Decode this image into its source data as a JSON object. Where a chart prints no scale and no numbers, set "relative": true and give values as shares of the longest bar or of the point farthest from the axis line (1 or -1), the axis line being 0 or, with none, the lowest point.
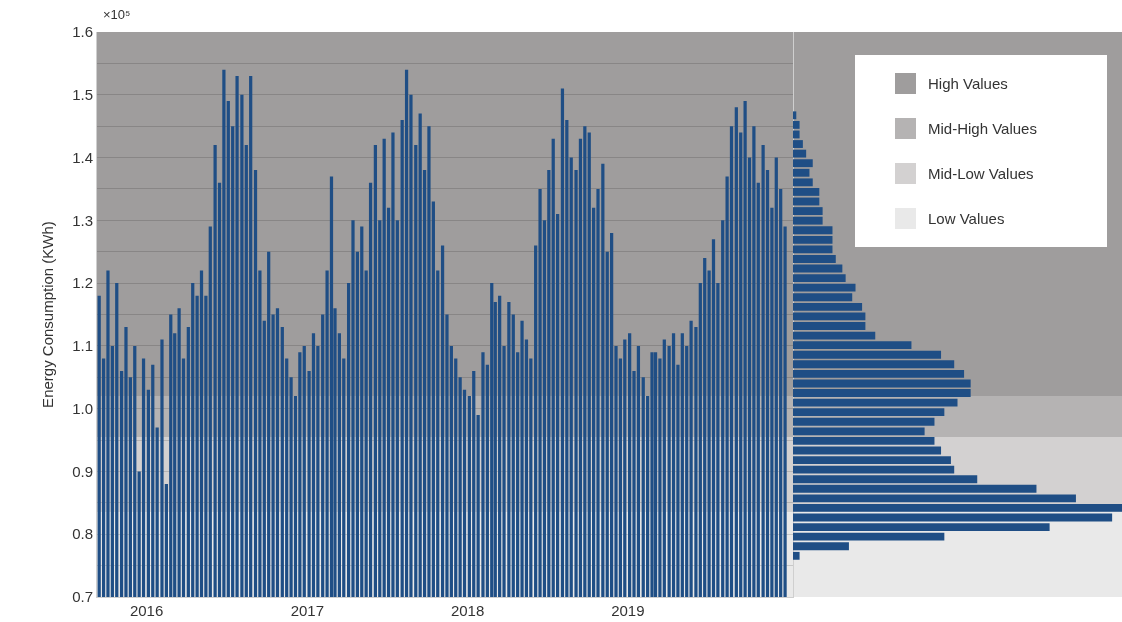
{
  "chart_data": [
    {
      "type": "bar",
      "ylabel": "Energy Consumption (KWh)",
      "annotations": [
        "×10⁵"
      ],
      "x": [
        "2015-09-15",
        "2015-09-25",
        "2015-10-05",
        "2015-10-15",
        "2015-10-25",
        "2015-11-05",
        "2015-11-15",
        "2015-11-25",
        "2015-12-05",
        "2015-12-15",
        "2015-12-25",
        "2016-01-05",
        "2016-01-15",
        "2016-01-25",
        "2016-02-05",
        "2016-02-15",
        "2016-02-25",
        "2016-03-05",
        "2016-03-15",
        "2016-03-25",
        "2016-04-05",
        "2016-04-15",
        "2016-04-25",
        "2016-05-05",
        "2016-05-15",
        "2016-05-25",
        "2016-06-05",
        "2016-06-15",
        "2016-06-25",
        "2016-07-05",
        "2016-07-15",
        "2016-07-25",
        "2016-08-05",
        "2016-08-15",
        "2016-08-25",
        "2016-09-05",
        "2016-09-15",
        "2016-09-25",
        "2016-10-05",
        "2016-10-15",
        "2016-10-25",
        "2016-11-05",
        "2016-11-15",
        "2016-11-25",
        "2016-12-05",
        "2016-12-15",
        "2016-12-25",
        "2017-01-05",
        "2017-01-15",
        "2017-01-25",
        "2017-02-05",
        "2017-02-15",
        "2017-02-25",
        "2017-03-05",
        "2017-03-15",
        "2017-03-25",
        "2017-04-05",
        "2017-04-15",
        "2017-04-25",
        "2017-05-05",
        "2017-05-15",
        "2017-05-25",
        "2017-06-05",
        "2017-06-15",
        "2017-06-25",
        "2017-07-05",
        "2017-07-15",
        "2017-07-25",
        "2017-08-05",
        "2017-08-15",
        "2017-08-25",
        "2017-09-05",
        "2017-09-15",
        "2017-09-25",
        "2017-10-05",
        "2017-10-15",
        "2017-10-25",
        "2017-11-05",
        "2017-11-15",
        "2017-11-25",
        "2017-12-05",
        "2017-12-15",
        "2017-12-25",
        "2018-01-05",
        "2018-01-15",
        "2018-01-25",
        "2018-02-05",
        "2018-02-15",
        "2018-02-25",
        "2018-03-05",
        "2018-03-15",
        "2018-03-25",
        "2018-04-05",
        "2018-04-15",
        "2018-04-25",
        "2018-05-05",
        "2018-05-15",
        "2018-05-25",
        "2018-06-05",
        "2018-06-15",
        "2018-06-25",
        "2018-07-05",
        "2018-07-15",
        "2018-07-25",
        "2018-08-05",
        "2018-08-15",
        "2018-08-25",
        "2018-09-05",
        "2018-09-15",
        "2018-09-25",
        "2018-10-05",
        "2018-10-15",
        "2018-10-25",
        "2018-11-05",
        "2018-11-15",
        "2018-11-25",
        "2018-12-05",
        "2018-12-15",
        "2018-12-25",
        "2019-01-05",
        "2019-01-15",
        "2019-01-25",
        "2019-02-05",
        "2019-02-15",
        "2019-02-25",
        "2019-03-05",
        "2019-03-15",
        "2019-03-25",
        "2019-04-05",
        "2019-04-15",
        "2019-04-25",
        "2019-05-05",
        "2019-05-15",
        "2019-05-25",
        "2019-06-05",
        "2019-06-15",
        "2019-06-25",
        "2019-07-05",
        "2019-07-15",
        "2019-07-25",
        "2019-08-05",
        "2019-08-15",
        "2019-08-25",
        "2019-09-05",
        "2019-09-15",
        "2019-09-25",
        "2019-10-05",
        "2019-10-15",
        "2019-10-25",
        "2019-11-05",
        "2019-11-15",
        "2019-11-25",
        "2019-12-05",
        "2019-12-15",
        "2019-12-25"
      ],
      "series": [
        {
          "color": "#1f4e85",
          "values": [
            1.18,
            1.08,
            1.22,
            1.1,
            1.2,
            1.06,
            1.13,
            1.05,
            1.1,
            0.9,
            1.08,
            1.03,
            1.07,
            0.97,
            1.11,
            0.88,
            1.15,
            1.12,
            1.16,
            1.08,
            1.13,
            1.2,
            1.18,
            1.22,
            1.18,
            1.29,
            1.42,
            1.36,
            1.54,
            1.49,
            1.45,
            1.53,
            1.5,
            1.42,
            1.53,
            1.38,
            1.22,
            1.14,
            1.25,
            1.15,
            1.16,
            1.13,
            1.08,
            1.05,
            1.02,
            1.09,
            1.1,
            1.06,
            1.12,
            1.1,
            1.15,
            1.22,
            1.37,
            1.16,
            1.12,
            1.08,
            1.2,
            1.3,
            1.25,
            1.29,
            1.22,
            1.36,
            1.42,
            1.3,
            1.43,
            1.32,
            1.44,
            1.3,
            1.46,
            1.54,
            1.5,
            1.42,
            1.47,
            1.38,
            1.45,
            1.33,
            1.22,
            1.26,
            1.15,
            1.1,
            1.08,
            1.05,
            1.03,
            1.02,
            1.06,
            0.99,
            1.09,
            1.07,
            1.2,
            1.17,
            1.18,
            1.1,
            1.17,
            1.15,
            1.09,
            1.14,
            1.11,
            1.08,
            1.26,
            1.35,
            1.3,
            1.38,
            1.43,
            1.31,
            1.51,
            1.46,
            1.4,
            1.38,
            1.43,
            1.45,
            1.44,
            1.32,
            1.35,
            1.39,
            1.25,
            1.28,
            1.1,
            1.08,
            1.11,
            1.12,
            1.06,
            1.1,
            1.05,
            1.02,
            1.09,
            1.09,
            1.08,
            1.11,
            1.1,
            1.12,
            1.07,
            1.12,
            1.1,
            1.14,
            1.13,
            1.2,
            1.24,
            1.22,
            1.27,
            1.2,
            1.3,
            1.37,
            1.45,
            1.48,
            1.44,
            1.49,
            1.4,
            1.45,
            1.36,
            1.42,
            1.38,
            1.32,
            1.4,
            1.35,
            1.29
          ]
        }
      ],
      "xlim": [
        "2015-09-10",
        "2020-01-12"
      ],
      "xticks": [
        {
          "value": "2016-01-01",
          "label": "2016"
        },
        {
          "value": "2017-01-01",
          "label": "2017"
        },
        {
          "value": "2018-01-01",
          "label": "2018"
        },
        {
          "value": "2019-01-01",
          "label": "2019"
        }
      ],
      "ylim": [
        0.7,
        1.6
      ],
      "yticks": [
        0.7,
        {
          "value": 0.75,
          "label": null
        },
        0.8,
        {
          "value": 0.85,
          "label": null
        },
        0.9,
        {
          "value": 0.95,
          "label": null
        },
        {
          "value": 1,
          "label": "1.0"
        },
        {
          "value": 1.05,
          "label": null
        },
        1.1,
        {
          "value": 1.15,
          "label": null
        },
        1.2,
        {
          "value": 1.25,
          "label": null
        },
        1.3,
        {
          "value": 1.35,
          "label": null
        },
        1.4,
        {
          "value": 1.45,
          "label": null
        },
        1.5,
        {
          "value": 1.55,
          "label": null
        },
        1.6
      ],
      "grid": "y",
      "legend": "top right",
      "bands": [
        {
          "axis": "y",
          "from": 1.02,
          "to": 1.6,
          "label": "High Values",
          "color": "#9f9d9d"
        },
        {
          "axis": "y",
          "from": 0.955,
          "to": 1.02,
          "label": "Mid-High Values",
          "color": "#b5b3b3"
        },
        {
          "axis": "y",
          "from": 0.835,
          "to": 0.955,
          "label": "Mid-Low Values",
          "color": "#d3d1d1"
        },
        {
          "axis": "y",
          "from": 0.7,
          "to": 0.835,
          "label": "Low Values",
          "color": "#e9e9e9"
        }
      ]
    },
    {
      "type": "bar",
      "orientation": "horizontal",
      "relative": true,
      "color": "#1f4e85",
      "categories": [
        null,
        null,
        null,
        null,
        null,
        null,
        null,
        null,
        null,
        null,
        null,
        null,
        null,
        null,
        null,
        null,
        null,
        null,
        null,
        null,
        null,
        null,
        null,
        null,
        null,
        null,
        null,
        null,
        null,
        null,
        null,
        null,
        null,
        null,
        null,
        null,
        null,
        null,
        null,
        null,
        null,
        null,
        null,
        null,
        null,
        null,
        null
      ],
      "values": [
        0.01,
        0.02,
        0.02,
        0.03,
        0.04,
        0.06,
        0.05,
        0.06,
        0.08,
        0.08,
        0.09,
        0.09,
        0.12,
        0.12,
        0.12,
        0.13,
        0.15,
        0.16,
        0.19,
        0.18,
        0.21,
        0.22,
        0.22,
        0.25,
        0.36,
        0.45,
        0.49,
        0.52,
        0.54,
        0.54,
        0.5,
        0.46,
        0.43,
        0.4,
        0.43,
        0.45,
        0.48,
        0.49,
        0.56,
        0.74,
        0.86,
        1,
        0.97,
        0.78,
        0.46,
        0.17,
        0.02
      ]
    }
  ]
}
